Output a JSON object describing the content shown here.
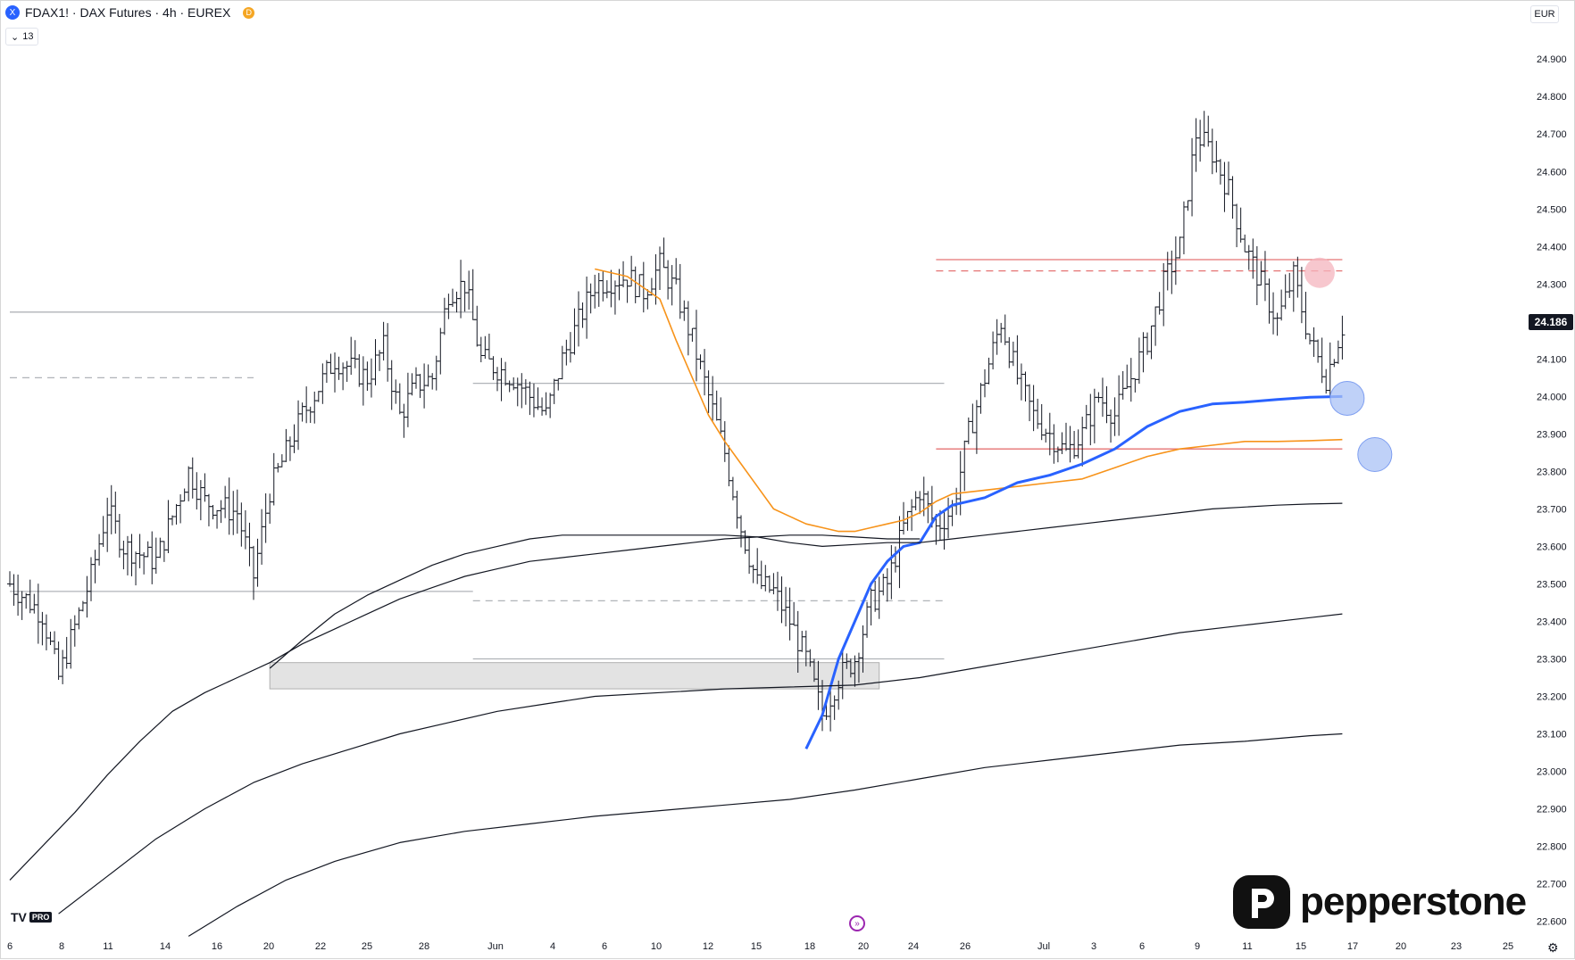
{
  "header": {
    "symbol_icon": "X",
    "title": "FDAX1! · DAX Futures · 4h · EUREX",
    "badge": "D"
  },
  "indicator_toggle": {
    "icon": "chevron-down-icon",
    "count": "13"
  },
  "currency": "EUR",
  "last_price_label": "24.186",
  "brand": {
    "logo": "pepperstone-p-logo",
    "name": "pepperstone"
  },
  "tv_logo": {
    "mark": "TV",
    "badge": "PRO"
  },
  "colors": {
    "candles": "#131722",
    "orange_line": "#f7931a",
    "blue_line": "#2962ff",
    "red_level": "#e57373",
    "circle_blue": "#a9c1f5",
    "circle_red": "#f4b4bd",
    "zone_gray": "#d9d9d9"
  },
  "chart_data": {
    "type": "candlestick",
    "title": "",
    "price_axis": {
      "ticks": [
        "24.900",
        "24.800",
        "24.700",
        "24.600",
        "24.500",
        "24.400",
        "24.300",
        "24.200",
        "24.100",
        "24.000",
        "23.900",
        "23.800",
        "23.700",
        "23.600",
        "23.500",
        "23.400",
        "23.300",
        "23.200",
        "23.100",
        "23.000",
        "22.900",
        "22.800",
        "22.700",
        "22.600"
      ],
      "range": [
        22540,
        25010
      ]
    },
    "time_axis": {
      "ticks": [
        "6",
        "8",
        "11",
        "14",
        "16",
        "20",
        "22",
        "25",
        "28",
        "Jun",
        "4",
        "6",
        "10",
        "12",
        "15",
        "18",
        "20",
        "24",
        "26",
        "Jul",
        "3",
        "6",
        "9",
        "11",
        "15",
        "17",
        "20",
        "23",
        "25"
      ]
    },
    "last_price": 24186,
    "close_path": [
      {
        "d": 0,
        "p": 23500
      },
      {
        "d": 2,
        "p": 23420
      },
      {
        "d": 3,
        "p": 23250
      },
      {
        "d": 5,
        "p": 23520
      },
      {
        "d": 6,
        "p": 23700
      },
      {
        "d": 7,
        "p": 23600
      },
      {
        "d": 9,
        "p": 23560
      },
      {
        "d": 11,
        "p": 23800
      },
      {
        "d": 12,
        "p": 23720
      },
      {
        "d": 14,
        "p": 23690
      },
      {
        "d": 15,
        "p": 23520
      },
      {
        "d": 16,
        "p": 23750
      },
      {
        "d": 18,
        "p": 23950
      },
      {
        "d": 20,
        "p": 24100
      },
      {
        "d": 22,
        "p": 24050
      },
      {
        "d": 23,
        "p": 24130
      },
      {
        "d": 24,
        "p": 23950
      },
      {
        "d": 25,
        "p": 24030
      },
      {
        "d": 26,
        "p": 24050
      },
      {
        "d": 27,
        "p": 24280
      },
      {
        "d": 28,
        "p": 24300
      },
      {
        "d": 29,
        "p": 24100
      },
      {
        "d": 31,
        "p": 24050
      },
      {
        "d": 33,
        "p": 23950
      },
      {
        "d": 34,
        "p": 24100
      },
      {
        "d": 36,
        "p": 24300
      },
      {
        "d": 38,
        "p": 24320
      },
      {
        "d": 39,
        "p": 24280
      },
      {
        "d": 40,
        "p": 24350
      },
      {
        "d": 41,
        "p": 24280
      },
      {
        "d": 42,
        "p": 24150
      },
      {
        "d": 43,
        "p": 24000
      },
      {
        "d": 44,
        "p": 23850
      },
      {
        "d": 45,
        "p": 23650
      },
      {
        "d": 46,
        "p": 23500
      },
      {
        "d": 47,
        "p": 23480
      },
      {
        "d": 48,
        "p": 23400
      },
      {
        "d": 49,
        "p": 23300
      },
      {
        "d": 50,
        "p": 23150
      },
      {
        "d": 51,
        "p": 23250
      },
      {
        "d": 52,
        "p": 23300
      },
      {
        "d": 53,
        "p": 23450
      },
      {
        "d": 54,
        "p": 23500
      },
      {
        "d": 55,
        "p": 23650
      },
      {
        "d": 56,
        "p": 23750
      },
      {
        "d": 57,
        "p": 23650
      },
      {
        "d": 58,
        "p": 23700
      },
      {
        "d": 59,
        "p": 23900
      },
      {
        "d": 60,
        "p": 24050
      },
      {
        "d": 61,
        "p": 24200
      },
      {
        "d": 62,
        "p": 24050
      },
      {
        "d": 63,
        "p": 23950
      },
      {
        "d": 64,
        "p": 23900
      },
      {
        "d": 65,
        "p": 23850
      },
      {
        "d": 66,
        "p": 23900
      },
      {
        "d": 67,
        "p": 24000
      },
      {
        "d": 68,
        "p": 23950
      },
      {
        "d": 69,
        "p": 24050
      },
      {
        "d": 70,
        "p": 24150
      },
      {
        "d": 71,
        "p": 24300
      },
      {
        "d": 72,
        "p": 24400
      },
      {
        "d": 73,
        "p": 24700
      },
      {
        "d": 74,
        "p": 24650
      },
      {
        "d": 75,
        "p": 24550
      },
      {
        "d": 76,
        "p": 24400
      },
      {
        "d": 77,
        "p": 24300
      },
      {
        "d": 78,
        "p": 24200
      },
      {
        "d": 79,
        "p": 24320
      },
      {
        "d": 80,
        "p": 24150
      },
      {
        "d": 81,
        "p": 24050
      },
      {
        "d": 82,
        "p": 24186
      }
    ],
    "horizontal_levels": [
      {
        "price": 24365,
        "style": "solid",
        "color": "red",
        "from_day": 57,
        "to_day": 82
      },
      {
        "price": 24335,
        "style": "dashed",
        "color": "red",
        "from_day": 57,
        "to_day": 82
      },
      {
        "price": 23860,
        "style": "solid",
        "color": "red",
        "from_day": 57,
        "to_day": 82
      },
      {
        "price": 24225,
        "style": "solid",
        "color": "gray",
        "from_day": 0,
        "to_day": 28.5
      },
      {
        "price": 24050,
        "style": "dashed",
        "color": "gray",
        "from_day": 0,
        "to_day": 15
      },
      {
        "price": 24035,
        "style": "solid",
        "color": "gray",
        "from_day": 28.5,
        "to_day": 57.5
      },
      {
        "price": 23480,
        "style": "solid",
        "color": "gray",
        "from_day": 0,
        "to_day": 28.5
      },
      {
        "price": 23455,
        "style": "dashed",
        "color": "gray",
        "from_day": 28.5,
        "to_day": 57.5
      },
      {
        "price": 23300,
        "style": "solid",
        "color": "gray",
        "from_day": 28.5,
        "to_day": 57.5
      }
    ],
    "zone": {
      "price_top": 23290,
      "price_bottom": 23220,
      "from_day": 16,
      "to_day": 53.5
    },
    "markers": [
      {
        "type": "circle",
        "color": "blue",
        "day": 82.3,
        "price": 23995
      },
      {
        "type": "circle",
        "color": "blue",
        "day": 84,
        "price": 23845
      },
      {
        "type": "circle",
        "color": "red",
        "day": 80.6,
        "price": 24330
      }
    ],
    "series": [
      {
        "color": "orange",
        "points": [
          [
            36,
            24340
          ],
          [
            38,
            24320
          ],
          [
            40,
            24260
          ],
          [
            41,
            24150
          ],
          [
            42,
            24050
          ],
          [
            43,
            23950
          ],
          [
            44,
            23880
          ],
          [
            45,
            23820
          ],
          [
            46,
            23760
          ],
          [
            47,
            23700
          ],
          [
            48,
            23680
          ],
          [
            49,
            23660
          ],
          [
            50,
            23650
          ],
          [
            51,
            23640
          ],
          [
            52,
            23640
          ],
          [
            53,
            23650
          ],
          [
            54,
            23660
          ],
          [
            55,
            23670
          ],
          [
            56,
            23690
          ],
          [
            57,
            23720
          ],
          [
            58,
            23740
          ],
          [
            60,
            23750
          ],
          [
            62,
            23760
          ],
          [
            64,
            23770
          ],
          [
            66,
            23780
          ],
          [
            68,
            23810
          ],
          [
            70,
            23840
          ],
          [
            72,
            23860
          ],
          [
            74,
            23870
          ],
          [
            76,
            23880
          ],
          [
            78,
            23880
          ],
          [
            80,
            23882
          ],
          [
            82,
            23885
          ]
        ]
      },
      {
        "color": "blue",
        "points": [
          [
            49,
            23060
          ],
          [
            50,
            23150
          ],
          [
            51,
            23300
          ],
          [
            52,
            23400
          ],
          [
            53,
            23500
          ],
          [
            54,
            23560
          ],
          [
            55,
            23600
          ],
          [
            56,
            23610
          ],
          [
            57,
            23680
          ],
          [
            58,
            23710
          ],
          [
            60,
            23730
          ],
          [
            62,
            23770
          ],
          [
            64,
            23790
          ],
          [
            66,
            23820
          ],
          [
            68,
            23860
          ],
          [
            70,
            23920
          ],
          [
            72,
            23960
          ],
          [
            74,
            23980
          ],
          [
            76,
            23985
          ],
          [
            78,
            23992
          ],
          [
            80,
            23998
          ],
          [
            82,
            24000
          ]
        ]
      },
      {
        "color": "black",
        "label": "band-1",
        "points": [
          [
            16,
            23275
          ],
          [
            18,
            23350
          ],
          [
            20,
            23420
          ],
          [
            22,
            23470
          ],
          [
            24,
            23510
          ],
          [
            26,
            23550
          ],
          [
            28,
            23580
          ],
          [
            30,
            23600
          ],
          [
            32,
            23620
          ],
          [
            34,
            23630
          ],
          [
            36,
            23630
          ],
          [
            38,
            23630
          ],
          [
            40,
            23630
          ],
          [
            42,
            23630
          ],
          [
            44,
            23630
          ],
          [
            46,
            23625
          ],
          [
            48,
            23610
          ],
          [
            50,
            23600
          ],
          [
            52,
            23605
          ],
          [
            54,
            23610
          ],
          [
            56,
            23610
          ],
          [
            58,
            23620
          ],
          [
            60,
            23630
          ],
          [
            62,
            23640
          ],
          [
            64,
            23650
          ],
          [
            66,
            23660
          ],
          [
            68,
            23670
          ],
          [
            70,
            23680
          ],
          [
            72,
            23690
          ],
          [
            74,
            23700
          ],
          [
            76,
            23705
          ],
          [
            78,
            23710
          ],
          [
            80,
            23713
          ],
          [
            82,
            23715
          ]
        ]
      },
      {
        "color": "black",
        "label": "band-2",
        "points": [
          [
            0,
            22710
          ],
          [
            2,
            22800
          ],
          [
            4,
            22890
          ],
          [
            6,
            22990
          ],
          [
            8,
            23080
          ],
          [
            10,
            23160
          ],
          [
            12,
            23210
          ],
          [
            14,
            23250
          ],
          [
            16,
            23290
          ],
          [
            18,
            23340
          ],
          [
            20,
            23380
          ],
          [
            22,
            23420
          ],
          [
            24,
            23460
          ],
          [
            26,
            23490
          ],
          [
            28,
            23520
          ],
          [
            30,
            23540
          ],
          [
            32,
            23560
          ],
          [
            34,
            23570
          ],
          [
            36,
            23580
          ],
          [
            38,
            23590
          ],
          [
            40,
            23600
          ],
          [
            42,
            23610
          ],
          [
            44,
            23620
          ],
          [
            46,
            23625
          ],
          [
            48,
            23630
          ],
          [
            50,
            23630
          ],
          [
            52,
            23625
          ],
          [
            54,
            23620
          ],
          [
            56,
            23620
          ]
        ]
      },
      {
        "color": "black",
        "label": "band-3",
        "points": [
          [
            3,
            22620
          ],
          [
            6,
            22720
          ],
          [
            9,
            22820
          ],
          [
            12,
            22900
          ],
          [
            15,
            22970
          ],
          [
            18,
            23020
          ],
          [
            21,
            23060
          ],
          [
            24,
            23100
          ],
          [
            27,
            23130
          ],
          [
            30,
            23160
          ],
          [
            33,
            23180
          ],
          [
            36,
            23200
          ],
          [
            40,
            23210
          ],
          [
            44,
            23220
          ],
          [
            48,
            23225
          ],
          [
            52,
            23230
          ],
          [
            56,
            23250
          ],
          [
            60,
            23280
          ],
          [
            64,
            23310
          ],
          [
            68,
            23340
          ],
          [
            72,
            23370
          ],
          [
            76,
            23390
          ],
          [
            80,
            23410
          ],
          [
            82,
            23420
          ]
        ]
      },
      {
        "color": "black",
        "label": "band-4",
        "points": [
          [
            11,
            22560
          ],
          [
            14,
            22640
          ],
          [
            17,
            22710
          ],
          [
            20,
            22760
          ],
          [
            24,
            22810
          ],
          [
            28,
            22840
          ],
          [
            32,
            22860
          ],
          [
            36,
            22880
          ],
          [
            40,
            22895
          ],
          [
            44,
            22910
          ],
          [
            48,
            22925
          ],
          [
            52,
            22950
          ],
          [
            56,
            22980
          ],
          [
            60,
            23010
          ],
          [
            64,
            23030
          ],
          [
            68,
            23050
          ],
          [
            72,
            23070
          ],
          [
            76,
            23080
          ],
          [
            80,
            23095
          ],
          [
            82,
            23100
          ]
        ]
      }
    ]
  }
}
